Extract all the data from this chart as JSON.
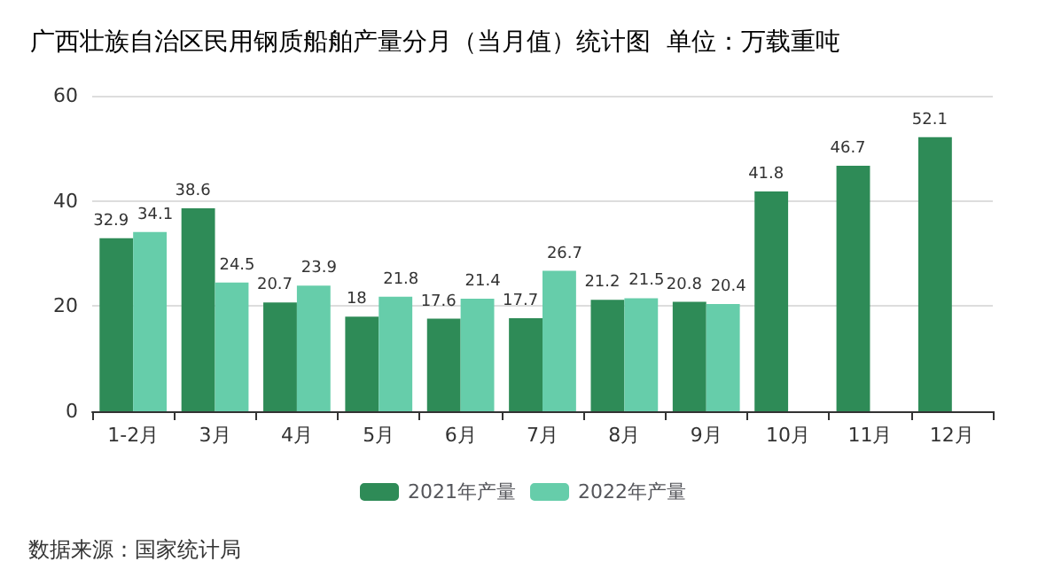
{
  "chart_data": {
    "type": "bar",
    "title": "广西壮族自治区民用钢质船舶产量分月（当月值）统计图  单位：万载重吨",
    "categories": [
      "1-2月",
      "3月",
      "4月",
      "5月",
      "6月",
      "7月",
      "8月",
      "9月",
      "10月",
      "11月",
      "12月"
    ],
    "series": [
      {
        "name": "2021年产量",
        "color": "#2e8b57",
        "values": [
          32.9,
          38.6,
          20.7,
          18,
          17.6,
          17.7,
          21.2,
          20.8,
          41.8,
          46.7,
          52.1
        ]
      },
      {
        "name": "2022年产量",
        "color": "#66cdaa",
        "values": [
          34.1,
          24.5,
          23.9,
          21.8,
          21.4,
          26.7,
          21.5,
          20.4,
          null,
          null,
          null
        ]
      }
    ],
    "ylim": [
      0,
      60
    ],
    "yticks": [
      0,
      20,
      40,
      60
    ],
    "grid": "y",
    "legend": "bottom",
    "data_labels": true,
    "annotations": [
      "数据来源：国家统计局"
    ]
  }
}
